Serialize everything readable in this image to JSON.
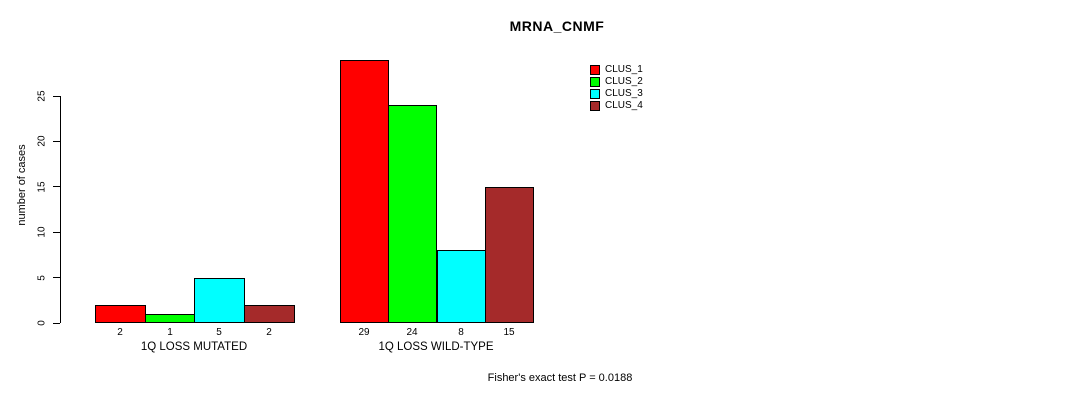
{
  "chart_data": {
    "type": "bar",
    "title": "MRNA_CNMF",
    "ylabel": "number of cases",
    "xlabel": "",
    "ylim": [
      0,
      25
    ],
    "yticks": [
      0,
      5,
      10,
      15,
      20,
      25
    ],
    "grid": false,
    "legend_position": "top-right",
    "series": [
      {
        "name": "CLUS_1",
        "color": "#ff0000"
      },
      {
        "name": "CLUS_2",
        "color": "#00ff00"
      },
      {
        "name": "CLUS_3",
        "color": "#00ffff"
      },
      {
        "name": "CLUS_4",
        "color": "#a52a2a"
      }
    ],
    "groups": [
      {
        "label": "1Q LOSS MUTATED",
        "values": [
          2,
          1,
          5,
          2
        ]
      },
      {
        "label": "1Q LOSS WILD-TYPE",
        "values": [
          29,
          24,
          8,
          15
        ]
      }
    ],
    "annotation": "Fisher's exact test P = 0.0188"
  }
}
